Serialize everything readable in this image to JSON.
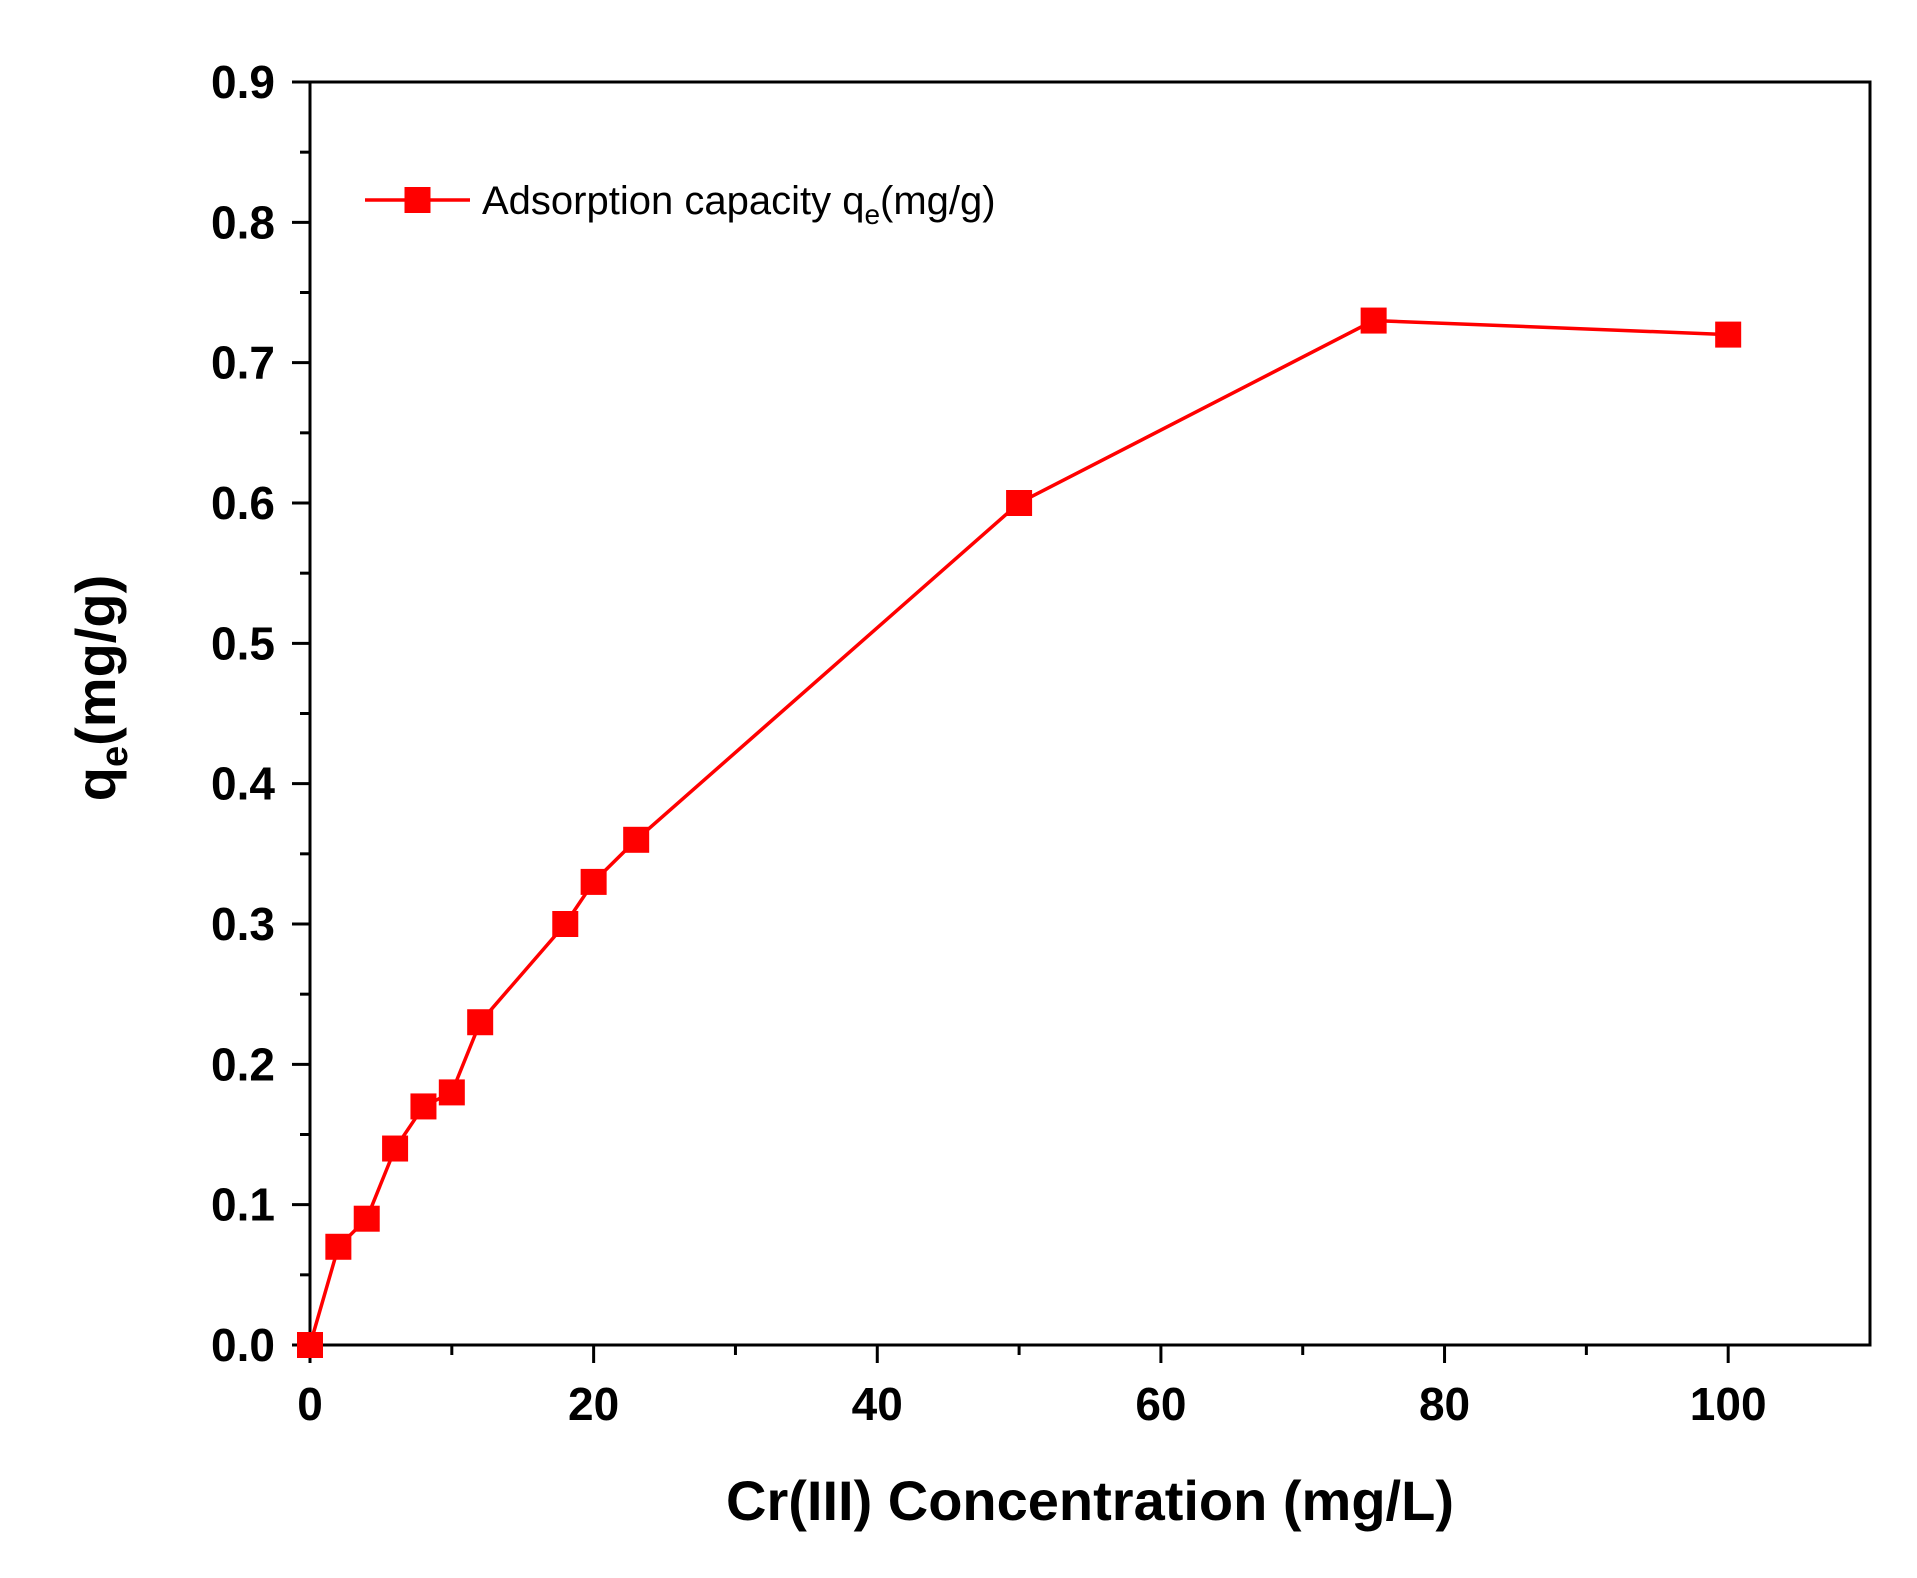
{
  "chart_data": {
    "type": "line",
    "title": "",
    "xlabel": "Cr(III) Concentration (mg/L)",
    "ylabel": {
      "main": "q",
      "sub": "e",
      "rest": "(mg/g)"
    },
    "xlim": [
      0,
      110
    ],
    "ylim": [
      0,
      0.9
    ],
    "xticks": [
      0,
      20,
      40,
      60,
      80,
      100
    ],
    "yticks": [
      0.0,
      0.1,
      0.2,
      0.3,
      0.4,
      0.5,
      0.6,
      0.7,
      0.8,
      0.9
    ],
    "xtick_labels": [
      "0",
      "20",
      "40",
      "60",
      "80",
      "100"
    ],
    "ytick_labels": [
      "0.0",
      "0.1",
      "0.2",
      "0.3",
      "0.4",
      "0.5",
      "0.6",
      "0.7",
      "0.8",
      "0.9"
    ],
    "grid": false,
    "legend_position": "top-left",
    "series": [
      {
        "name": "Adsorption capacity q",
        "legend": {
          "main": "Adsorption capacity q",
          "sub": "e",
          "rest": "(mg/g)"
        },
        "color": "#ff0000",
        "marker": "square",
        "x": [
          0,
          2,
          4,
          6,
          8,
          10,
          12,
          18,
          20,
          23,
          50,
          75,
          100
        ],
        "y": [
          0.0,
          0.07,
          0.09,
          0.14,
          0.17,
          0.18,
          0.23,
          0.3,
          0.33,
          0.36,
          0.6,
          0.73,
          0.72
        ]
      }
    ]
  }
}
